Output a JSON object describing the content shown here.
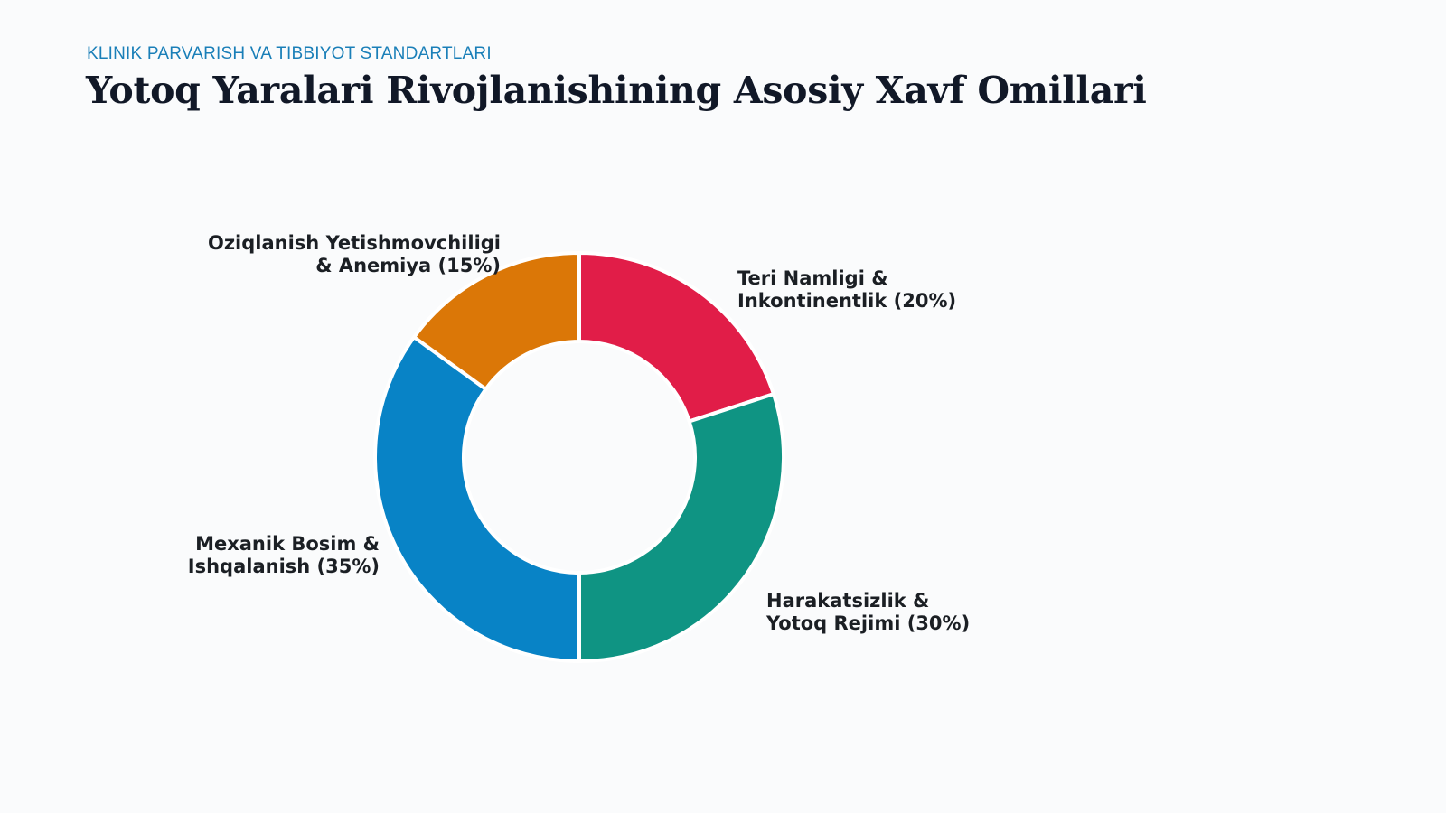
{
  "header": {
    "kicker": "KLINIK PARVARISH VA TIBBIYOT STANDARTLARI",
    "title": "Yotoq Yaralari Rivojlanishining Asosiy Xavf Omillari"
  },
  "chart_data": {
    "type": "pie",
    "variant": "donut",
    "title": "Yotoq Yaralari Rivojlanishining Asosiy Xavf Omillari",
    "legend": "none",
    "start_angle_deg": 90,
    "direction": "clockwise",
    "slices": [
      {
        "name": "Teri Namligi & Inkontinentlik",
        "value": 20,
        "label_lines": [
          "Teri Namligi &",
          "Inkontinentlik (20%)"
        ],
        "color": "#e11d48"
      },
      {
        "name": "Harakatsizlik & Yotoq Rejimi",
        "value": 30,
        "label_lines": [
          "Harakatsizlik &",
          "Yotoq Rejimi (30%)"
        ],
        "color": "#0f9483"
      },
      {
        "name": "Mexanik Bosim & Ishqalanish",
        "value": 35,
        "label_lines": [
          "Mexanik Bosim &",
          "Ishqalanish (35%)"
        ],
        "color": "#0883c6"
      },
      {
        "name": "Oziqlanish Yetishmovchiligi & Anemiya",
        "value": 15,
        "label_lines": [
          "Oziqlanish Yetishmovchiligi",
          "& Anemiya (15%)"
        ],
        "color": "#db7707"
      }
    ]
  }
}
